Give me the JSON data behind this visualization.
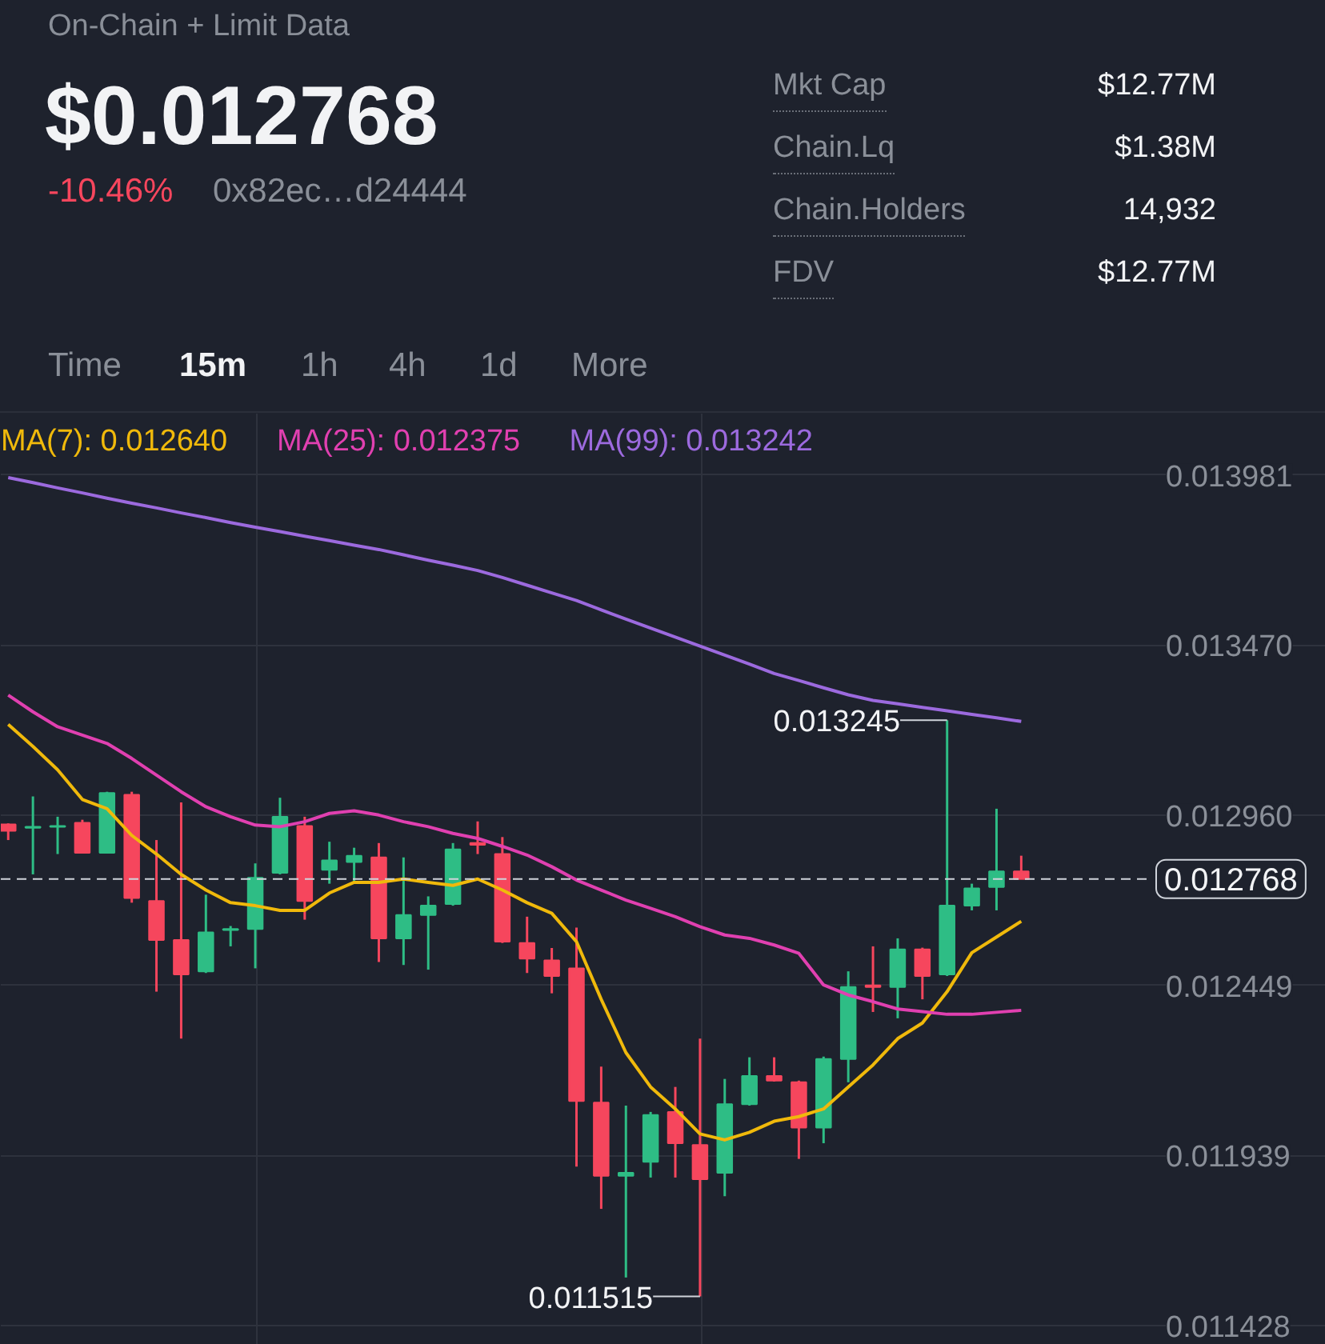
{
  "chart_data": {
    "type": "candlestick",
    "title": "On-Chain + Limit Data",
    "subtitle": "$0.012768",
    "categories": [
      null,
      null,
      null,
      null,
      null,
      null,
      null,
      null,
      null,
      null,
      null,
      null,
      null,
      null,
      null,
      null,
      null,
      null,
      null,
      null,
      null,
      null,
      null,
      null,
      null,
      null,
      null,
      null,
      null,
      null,
      null,
      null,
      null,
      null,
      null,
      null,
      null,
      null,
      null,
      null,
      null,
      null
    ],
    "ohlc": [
      [
        0.012932,
        0.012935,
        0.012885,
        0.012913
      ],
      [
        0.012922,
        0.013016,
        0.012782,
        0.012925
      ],
      [
        0.012925,
        0.012955,
        0.012843,
        0.012927
      ],
      [
        0.012937,
        0.012946,
        0.012847,
        0.012847
      ],
      [
        0.012847,
        0.01303,
        0.012847,
        0.013026
      ],
      [
        0.013021,
        0.01303,
        0.012697,
        0.012711
      ],
      [
        0.012702,
        0.012885,
        0.01243,
        0.012585
      ],
      [
        0.012585,
        0.012998,
        0.012289,
        0.012482
      ],
      [
        0.012491,
        0.012721,
        0.012486,
        0.012608
      ],
      [
        0.012615,
        0.012627,
        0.012566,
        0.012618
      ],
      [
        0.012618,
        0.012815,
        0.0125,
        0.012772
      ],
      [
        0.012787,
        0.013012,
        0.012782,
        0.012955
      ],
      [
        0.012927,
        0.012955,
        0.012646,
        0.012702
      ],
      [
        0.012796,
        0.01288,
        0.012754,
        0.012824
      ],
      [
        0.012819,
        0.012862,
        0.012758,
        0.012838
      ],
      [
        0.012833,
        0.012876,
        0.012519,
        0.01259
      ],
      [
        0.01259,
        0.012833,
        0.01251,
        0.01266
      ],
      [
        0.01266,
        0.012716,
        0.012496,
        0.012688
      ],
      [
        0.012693,
        0.012876,
        0.012688,
        0.012857
      ],
      [
        0.012876,
        0.012941,
        0.012843,
        0.012871
      ],
      [
        0.012843,
        0.012894,
        0.012576,
        0.01258
      ],
      [
        0.012576,
        0.012655,
        0.012486,
        0.012529
      ],
      [
        0.012524,
        0.012561,
        0.012425,
        0.012477
      ],
      [
        0.0125,
        0.012622,
        0.011905,
        0.012102
      ],
      [
        0.012097,
        0.012205,
        0.011778,
        0.011877
      ],
      [
        0.011877,
        0.012088,
        0.011572,
        0.011886
      ],
      [
        0.011919,
        0.012069,
        0.011872,
        0.01206
      ],
      [
        0.012069,
        0.012144,
        0.011872,
        0.011975
      ],
      [
        0.01197,
        0.012289,
        0.011515,
        0.011867
      ],
      [
        0.011886,
        0.012168,
        0.011816,
        0.012092
      ],
      [
        0.012092,
        0.012233,
        0.012088,
        0.012177
      ],
      [
        0.012177,
        0.012233,
        0.01216,
        0.012163
      ],
      [
        0.012158,
        0.012163,
        0.011928,
        0.012022
      ],
      [
        0.012022,
        0.012235,
        0.011975,
        0.012228
      ],
      [
        0.012228,
        0.012491,
        0.012158,
        0.012444
      ],
      [
        0.012449,
        0.012566,
        0.012369,
        0.012444
      ],
      [
        0.012444,
        0.01259,
        0.01235,
        0.012557
      ],
      [
        0.012557,
        0.012562,
        0.012407,
        0.012477
      ],
      [
        0.012482,
        0.013245,
        0.012477,
        0.012688
      ],
      [
        0.012688,
        0.012754,
        0.012674,
        0.01274
      ],
      [
        0.012744,
        0.012979,
        0.012674,
        0.012791
      ],
      [
        0.012791,
        0.012838,
        0.012768,
        0.012768
      ]
    ],
    "colors": [
      "#f6465d",
      "#2ebd85",
      "#2ebd85",
      "#f6465d",
      "#2ebd85",
      "#f6465d",
      "#f6465d",
      "#f6465d",
      "#2ebd85",
      "#2ebd85",
      "#2ebd85",
      "#2ebd85",
      "#f6465d",
      "#2ebd85",
      "#2ebd85",
      "#f6465d",
      "#2ebd85",
      "#2ebd85",
      "#2ebd85",
      "#f6465d",
      "#f6465d",
      "#f6465d",
      "#f6465d",
      "#f6465d",
      "#f6465d",
      "#2ebd85",
      "#2ebd85",
      "#f6465d",
      "#f6465d",
      "#2ebd85",
      "#2ebd85",
      "#f6465d",
      "#f6465d",
      "#2ebd85",
      "#2ebd85",
      "#f6465d",
      "#2ebd85",
      "#f6465d",
      "#2ebd85",
      "#2ebd85",
      "#2ebd85",
      "#f6465d"
    ],
    "series": [
      {
        "type": "line",
        "name": "MA(7): 0.012640",
        "color": "#f0b90b",
        "values": [
          0.013232,
          0.013166,
          0.013096,
          0.013007,
          0.012979,
          0.012899,
          0.012843,
          0.012782,
          0.012735,
          0.012697,
          0.012688,
          0.012674,
          0.012674,
          0.012726,
          0.012758,
          0.012758,
          0.012768,
          0.012758,
          0.012749,
          0.012768,
          0.012735,
          0.012697,
          0.012665,
          0.01258,
          0.012407,
          0.012247,
          0.012144,
          0.012078,
          0.012003,
          0.011985,
          0.012008,
          0.012041,
          0.012055,
          0.012078,
          0.012144,
          0.01221,
          0.012289,
          0.012336,
          0.01243,
          0.012547,
          0.012594,
          0.012641
        ]
      },
      {
        "type": "line",
        "name": "MA(25): 0.012375",
        "color": "#e040b0",
        "values": [
          0.01332,
          0.01327,
          0.013225,
          0.0132,
          0.013175,
          0.01313,
          0.01308,
          0.01303,
          0.012985,
          0.012955,
          0.01293,
          0.012925,
          0.01294,
          0.012965,
          0.012973,
          0.01296,
          0.01294,
          0.012925,
          0.012905,
          0.01289,
          0.012866,
          0.01284,
          0.012805,
          0.012765,
          0.012735,
          0.012705,
          0.01268,
          0.012655,
          0.012625,
          0.0126,
          0.01259,
          0.01257,
          0.012545,
          0.01245,
          0.01242,
          0.0124,
          0.012378,
          0.01237,
          0.012362,
          0.012362,
          0.012368,
          0.012374
        ]
      },
      {
        "type": "line",
        "name": "MA(99): 0.013242",
        "color": "#9c6ade",
        "values": [
          0.013973,
          0.013958,
          0.013942,
          0.013927,
          0.013911,
          0.013896,
          0.013882,
          0.013867,
          0.013853,
          0.013838,
          0.013824,
          0.013811,
          0.013797,
          0.013784,
          0.01377,
          0.013757,
          0.013741,
          0.013725,
          0.01371,
          0.013694,
          0.013673,
          0.01365,
          0.013627,
          0.013604,
          0.013576,
          0.013548,
          0.013521,
          0.013494,
          0.013467,
          0.01344,
          0.013413,
          0.013385,
          0.013364,
          0.013342,
          0.013321,
          0.013304,
          0.013294,
          0.013283,
          0.013273,
          0.013262,
          0.013252,
          0.013241
        ]
      }
    ],
    "ylim": [
      0.01137,
      0.014165
    ],
    "yticks": [
      0.013981,
      {
        "value": 0.01347,
        "label": "0.013470"
      },
      {
        "value": 0.01296,
        "label": "0.012960"
      },
      0.012449,
      0.011939,
      0.011428
    ],
    "tick_labels": "y",
    "grid": true,
    "ref_lines": [
      {
        "axis": "y",
        "value": 0.012768,
        "label": "0.012768",
        "line_style": "dashed",
        "color": "#cfd3da"
      }
    ],
    "annotations": [
      "-10.46%",
      "0x82ec…d24444",
      "Mkt Cap",
      "$12.77M",
      "Chain.Lq",
      "$1.38M",
      "Chain.Holders",
      "14,932",
      "FDV",
      "$12.77M",
      "Time",
      "15m",
      "1h",
      "4h",
      "1d",
      "More",
      "0.013245",
      "0.011515"
    ]
  }
}
